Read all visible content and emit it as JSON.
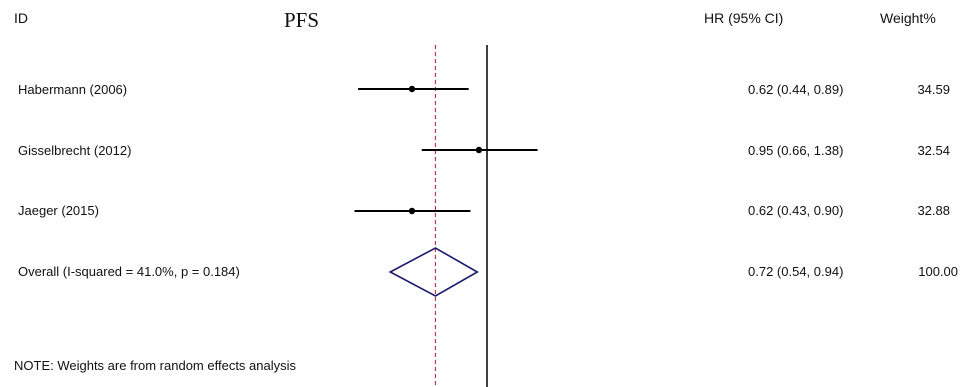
{
  "header": {
    "id_label": "ID",
    "title": "PFS",
    "hr_label": "HR (95% CI)",
    "weight_label": "Weight",
    "weight_pct": "%"
  },
  "chart_data": {
    "type": "forest",
    "title": "PFS",
    "null_value": 1,
    "overall_line": 0.72,
    "studies": [
      {
        "label": "Habermann (2006)",
        "hr": 0.62,
        "lo": 0.44,
        "hi": 0.89,
        "hr_text": "0.62 (0.44, 0.89)",
        "weight": "34.59"
      },
      {
        "label": "Gisselbrecht (2012)",
        "hr": 0.95,
        "lo": 0.66,
        "hi": 1.38,
        "hr_text": "0.95 (0.66, 1.38)",
        "weight": "32.54"
      },
      {
        "label": "Jaeger (2015)",
        "hr": 0.62,
        "lo": 0.43,
        "hi": 0.9,
        "hr_text": "0.62 (0.43, 0.90)",
        "weight": "32.88"
      }
    ],
    "overall": {
      "label": "Overall  (I-squared = 41.0%, p = 0.184)",
      "hr": 0.72,
      "lo": 0.54,
      "hi": 0.94,
      "hr_text": "0.72 (0.54, 0.94)",
      "weight": "100.00"
    },
    "note": "NOTE: Weights are from random effects analysis",
    "colors": {
      "diamond": "#1a1a6e",
      "overall_line": "#c0394b",
      "lines": "#000000"
    }
  }
}
